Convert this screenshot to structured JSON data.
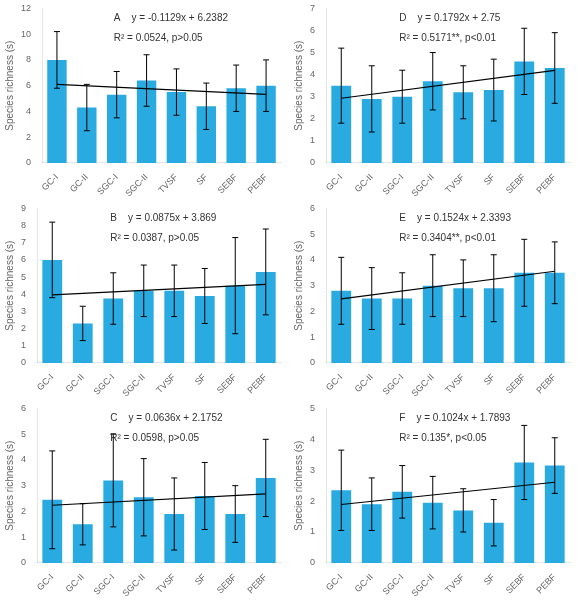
{
  "chart_data": [
    {
      "type": "bar",
      "ylabel": "Species richness (s)",
      "categories": [
        "GC-I",
        "GC-II",
        "SGC-I",
        "SGC-II",
        "TVSF",
        "SF",
        "SEBF",
        "PEBF"
      ],
      "series": [
        {
          "type": "bar",
          "color": "#29ABE2",
          "values": [
            8.0,
            4.3,
            5.3,
            6.4,
            5.5,
            4.4,
            5.8,
            6.0
          ],
          "errors": [
            2.2,
            1.8,
            1.8,
            2.0,
            1.8,
            1.8,
            1.8,
            2.0
          ]
        },
        {
          "type": "line",
          "color": "#000000",
          "x": [
            "GC-I",
            "PEBF"
          ],
          "values": [
            6.1,
            5.32
          ]
        }
      ],
      "annotations": [
        "A    y = -0.1129x + 6.2382",
        "R² = 0.0524, p>0.05"
      ],
      "ylim": [
        0,
        12
      ],
      "yticks": [
        0,
        2,
        4,
        6,
        8,
        10,
        12
      ],
      "grid": false
    },
    {
      "type": "bar",
      "ylabel": "Species richness (s)",
      "categories": [
        "GC-I",
        "GC-II",
        "SGC-I",
        "SGC-II",
        "TVSF",
        "SF",
        "SEBF",
        "PEBF"
      ],
      "series": [
        {
          "type": "bar",
          "color": "#29ABE2",
          "values": [
            3.5,
            2.9,
            3.0,
            3.7,
            3.2,
            3.3,
            4.6,
            4.3
          ],
          "errors": [
            1.7,
            1.5,
            1.2,
            1.3,
            1.2,
            1.4,
            1.5,
            1.6
          ]
        },
        {
          "type": "line",
          "color": "#000000",
          "x": [
            "GC-I",
            "PEBF"
          ],
          "values": [
            2.93,
            4.19
          ]
        }
      ],
      "annotations": [
        "D    y = 0.1792x + 2.75",
        "R² = 0.5171**, p<0.01"
      ],
      "ylim": [
        0,
        7
      ],
      "yticks": [
        0,
        1,
        2,
        3,
        4,
        5,
        6,
        7
      ],
      "grid": false
    },
    {
      "type": "bar",
      "ylabel": "Species richness (s)",
      "categories": [
        "GC-I",
        "GC-II",
        "SGC-I",
        "SGC-II",
        "TVSF",
        "SF",
        "SEBF",
        "PEBF"
      ],
      "series": [
        {
          "type": "bar",
          "color": "#29ABE2",
          "values": [
            6.0,
            2.3,
            3.75,
            4.2,
            4.2,
            3.9,
            4.5,
            5.3
          ],
          "errors": [
            2.2,
            1.0,
            1.5,
            1.5,
            1.5,
            1.6,
            2.8,
            2.5
          ]
        },
        {
          "type": "line",
          "color": "#000000",
          "x": [
            "GC-I",
            "PEBF"
          ],
          "values": [
            3.96,
            4.57
          ]
        }
      ],
      "annotations": [
        "B    y = 0.0875x + 3.869",
        "R² = 0.0387, p>0.05"
      ],
      "ylim": [
        0,
        9
      ],
      "yticks": [
        0,
        1,
        2,
        3,
        4,
        5,
        6,
        7,
        8,
        9
      ],
      "grid": false
    },
    {
      "type": "bar",
      "ylabel": "Species richness (s)",
      "categories": [
        "GC-I",
        "GC-II",
        "SGC-I",
        "SGC-II",
        "TVSF",
        "SF",
        "SEBF",
        "PEBF"
      ],
      "series": [
        {
          "type": "bar",
          "color": "#29ABE2",
          "values": [
            2.8,
            2.5,
            2.5,
            3.0,
            2.9,
            2.9,
            3.5,
            3.5
          ],
          "errors": [
            1.3,
            1.2,
            1.0,
            1.2,
            1.1,
            1.3,
            1.3,
            1.2
          ]
        },
        {
          "type": "line",
          "color": "#000000",
          "x": [
            "GC-I",
            "PEBF"
          ],
          "values": [
            2.49,
            3.56
          ]
        }
      ],
      "annotations": [
        "E    y = 0.1524x + 2.3393",
        "R² = 0.3404**, p<0.01"
      ],
      "ylim": [
        0,
        6
      ],
      "yticks": [
        0,
        1,
        2,
        3,
        4,
        5,
        6
      ],
      "grid": false
    },
    {
      "type": "bar",
      "ylabel": "Species richness (s)",
      "categories": [
        "GC-I",
        "GC-II",
        "SGC-I",
        "SGC-II",
        "TVSF",
        "SF",
        "SEBF",
        "PEBF"
      ],
      "series": [
        {
          "type": "bar",
          "color": "#29ABE2",
          "values": [
            2.45,
            1.5,
            3.2,
            2.55,
            1.9,
            2.6,
            1.9,
            3.3
          ],
          "errors": [
            1.9,
            0.8,
            1.8,
            1.5,
            1.4,
            1.3,
            1.1,
            1.5
          ]
        },
        {
          "type": "line",
          "color": "#000000",
          "x": [
            "GC-I",
            "PEBF"
          ],
          "values": [
            2.24,
            2.68
          ]
        }
      ],
      "annotations": [
        "C    y = 0.0636x + 2.1752",
        "R² = 0.0598, p>0.05"
      ],
      "ylim": [
        0,
        6
      ],
      "yticks": [
        0,
        1,
        2,
        3,
        4,
        5,
        6
      ],
      "grid": false
    },
    {
      "type": "bar",
      "ylabel": "Species richness (s)",
      "categories": [
        "GC-I",
        "GC-II",
        "SGC-I",
        "SGC-II",
        "TVSF",
        "SF",
        "SEBF",
        "PEBF"
      ],
      "series": [
        {
          "type": "bar",
          "color": "#29ABE2",
          "values": [
            2.35,
            1.9,
            2.3,
            1.95,
            1.7,
            1.3,
            3.25,
            3.15
          ],
          "errors": [
            1.3,
            0.85,
            0.85,
            0.85,
            0.7,
            0.75,
            1.2,
            0.9
          ]
        },
        {
          "type": "line",
          "color": "#000000",
          "x": [
            "GC-I",
            "PEBF"
          ],
          "values": [
            1.89,
            2.61
          ]
        }
      ],
      "annotations": [
        "F    y = 0.1024x + 1.7893",
        "R² = 0.135*, p<0.05"
      ],
      "ylim": [
        0,
        5
      ],
      "yticks": [
        0,
        1,
        2,
        3,
        4,
        5
      ],
      "grid": false
    }
  ]
}
